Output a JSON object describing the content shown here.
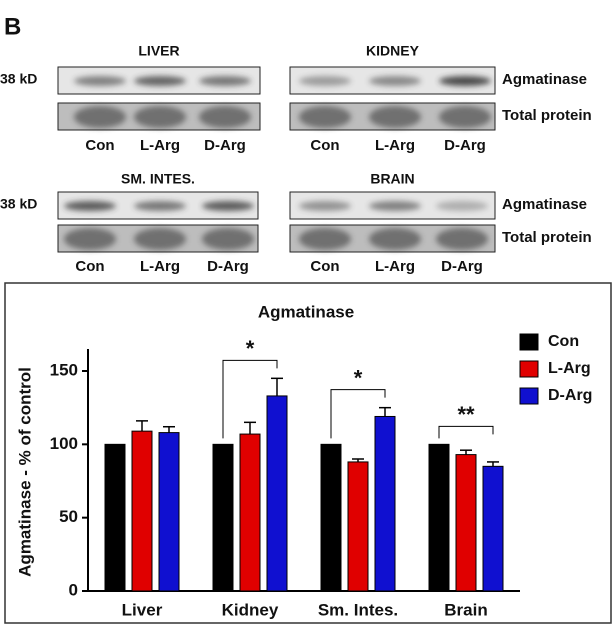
{
  "panel_label": "B",
  "blot_rows": [
    {
      "marker": "38 kD",
      "band_labels": [
        "Agmatinase",
        "Total protein"
      ],
      "panels": [
        {
          "name": "LIVER",
          "lanes": [
            "Con",
            "L-Arg",
            "D-Arg"
          ]
        },
        {
          "name": "KIDNEY",
          "lanes": [
            "Con",
            "L-Arg",
            "D-Arg"
          ]
        }
      ]
    },
    {
      "marker": "38 kD",
      "band_labels": [
        "Agmatinase",
        "Total protein"
      ],
      "panels": [
        {
          "name": "SM. INTES.",
          "lanes": [
            "Con",
            "L-Arg",
            "D-Arg"
          ]
        },
        {
          "name": "BRAIN",
          "lanes": [
            "Con",
            "L-Arg",
            "D-Arg"
          ]
        }
      ]
    }
  ],
  "chart_data": {
    "type": "bar",
    "title": "Agmatinase",
    "y_label": "Agmatinase - % of control",
    "categories": [
      "Liver",
      "Kidney",
      "Sm. Intes.",
      "Brain"
    ],
    "series": [
      {
        "name": "Con",
        "color": "#000000",
        "values": [
          100,
          100,
          100,
          100
        ]
      },
      {
        "name": "L-Arg",
        "color": "#e00000",
        "values": [
          109,
          107,
          88,
          93
        ],
        "errors": [
          7,
          8,
          2,
          3
        ]
      },
      {
        "name": "D-Arg",
        "color": "#1010d0",
        "values": [
          108,
          133,
          119,
          85
        ],
        "errors": [
          4,
          12,
          6,
          3
        ]
      }
    ],
    "significance": [
      null,
      "*",
      "*",
      "**"
    ],
    "ylim": [
      0,
      165
    ],
    "yticks": [
      0,
      50,
      100,
      150
    ],
    "legend": "top-right"
  }
}
